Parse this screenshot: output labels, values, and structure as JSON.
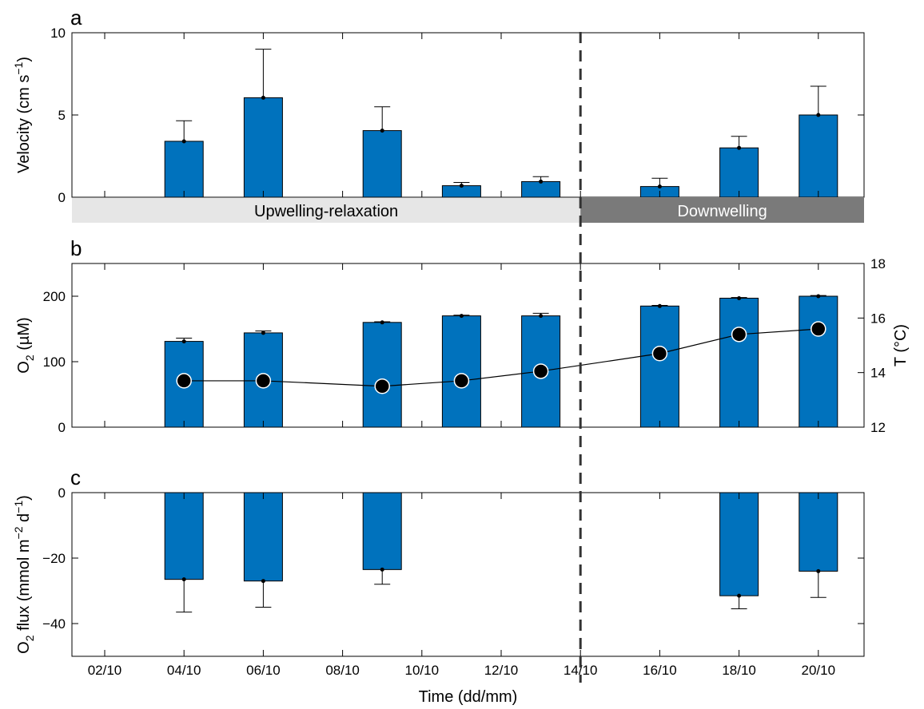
{
  "x_ticks": [
    "02/10",
    "04/10",
    "06/10",
    "08/10",
    "10/10",
    "12/10",
    "14/10",
    "16/10",
    "18/10",
    "20/10"
  ],
  "x_label": "Time (dd/mm)",
  "regimes": [
    {
      "label": "Upwelling-relaxation",
      "color": "#e6e6e6",
      "text_color": "#000000"
    },
    {
      "label": "Downwelling",
      "color": "#7a7a7a",
      "text_color": "#ffffff"
    }
  ],
  "colors": {
    "bar": "#0072bd",
    "dashed_line": "#333333",
    "marker": "#000000"
  },
  "chart_data": [
    {
      "panel": "a",
      "type": "bar",
      "ylabel": "Velocity (cm s",
      "ylabel_sup": "−1",
      "ylabel_end": ")",
      "ylim": [
        0,
        10
      ],
      "yticks": [
        0,
        5,
        10
      ],
      "x": [
        "04/10",
        "06/10",
        "09/10",
        "11/10",
        "13/10",
        "16/10",
        "18/10",
        "20/10"
      ],
      "values": [
        3.4,
        6.05,
        4.05,
        0.7,
        0.95,
        0.65,
        3.0,
        5.0
      ],
      "error": [
        1.25,
        2.95,
        1.45,
        0.2,
        0.3,
        0.5,
        0.7,
        1.75
      ],
      "error_dir": "up"
    },
    {
      "panel": "b",
      "type": "bar",
      "ylabel": "O",
      "ylabel_sub": "2",
      "ylabel_end": " (µM)",
      "ylim": [
        0,
        250
      ],
      "yticks": [
        0,
        100,
        200
      ],
      "x": [
        "04/10",
        "06/10",
        "09/10",
        "11/10",
        "13/10",
        "16/10",
        "18/10",
        "20/10"
      ],
      "values": [
        131,
        144,
        160,
        170,
        170,
        185,
        197,
        200
      ],
      "error": [
        5,
        3,
        1,
        1,
        4,
        1,
        1,
        1
      ],
      "error_dir": "up",
      "line_series": {
        "type": "line",
        "ylabel_right": "T (°C)",
        "ylim_right": [
          12,
          18
        ],
        "yticks_right": [
          12,
          14,
          16,
          18
        ],
        "values": [
          13.7,
          13.7,
          13.5,
          13.7,
          14.05,
          14.7,
          15.4,
          15.6
        ]
      }
    },
    {
      "panel": "c",
      "type": "bar",
      "ylabel": "O",
      "ylabel_sub": "2",
      "ylabel_mid": " flux (mmol m",
      "ylabel_sup": "−2",
      "ylabel_mid2": " d",
      "ylabel_sup2": "−1",
      "ylabel_end": ")",
      "ylim": [
        -50,
        0
      ],
      "yticks": [
        -40,
        -20,
        0
      ],
      "x": [
        "04/10",
        "06/10",
        "09/10",
        "18/10",
        "20/10"
      ],
      "values": [
        -26.5,
        -27,
        -23.5,
        -31.5,
        -24
      ],
      "error": [
        10,
        8,
        4.5,
        4,
        8
      ],
      "error_dir": "down"
    }
  ]
}
